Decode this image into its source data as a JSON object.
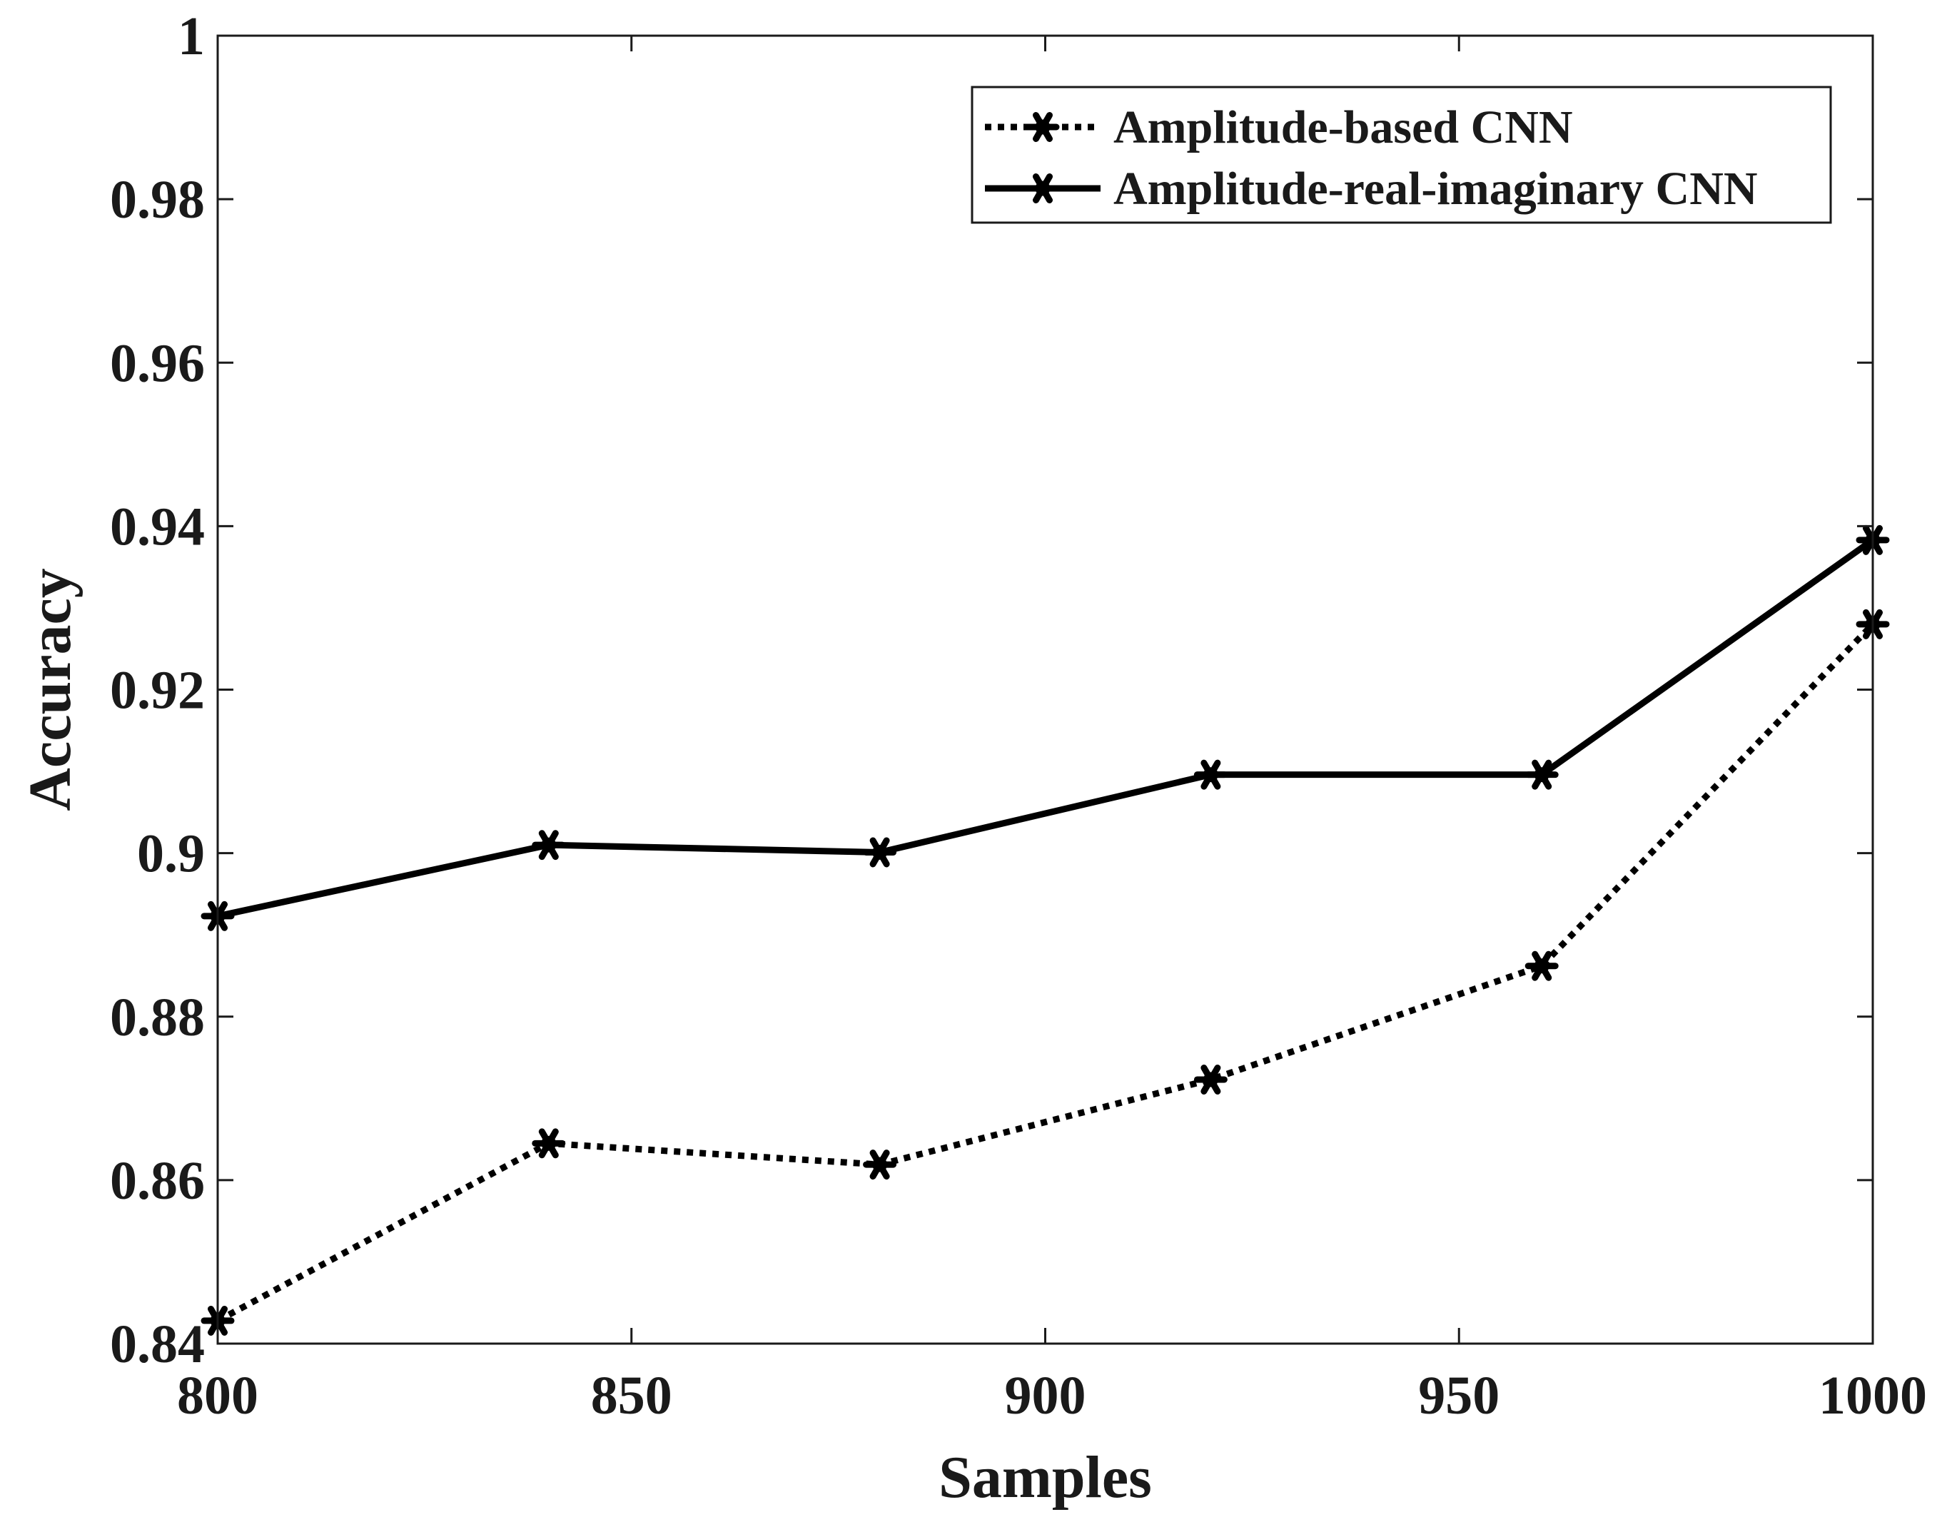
{
  "chart_data": {
    "type": "line",
    "title": "",
    "xlabel": "Samples",
    "ylabel": "Accuracy",
    "xlim": [
      800,
      1000
    ],
    "ylim": [
      0.84,
      1.0
    ],
    "x_ticks": [
      800,
      850,
      900,
      950,
      1000
    ],
    "x_tick_labels": [
      "800",
      "850",
      "900",
      "950",
      "1000"
    ],
    "y_ticks": [
      0.84,
      0.86,
      0.88,
      0.9,
      0.92,
      0.94,
      0.96,
      0.98,
      1.0
    ],
    "y_tick_labels": [
      "0.84",
      "0.86",
      "0.88",
      "0.9",
      "0.92",
      "0.94",
      "0.96",
      "0.98",
      "1"
    ],
    "grid": false,
    "legend_position": "top-right",
    "x": [
      800,
      840,
      880,
      920,
      960,
      1000
    ],
    "series": [
      {
        "name": "Amplitude-based CNN",
        "style": "dotted",
        "marker": "asterisk",
        "color": "#000000",
        "values": [
          0.8428,
          0.8645,
          0.8619,
          0.8723,
          0.8862,
          0.928
        ]
      },
      {
        "name": "Amplitude-real-imaginary CNN",
        "style": "solid",
        "marker": "asterisk",
        "color": "#000000",
        "values": [
          0.8923,
          0.901,
          0.9001,
          0.9096,
          0.9096,
          0.9383
        ]
      }
    ]
  }
}
